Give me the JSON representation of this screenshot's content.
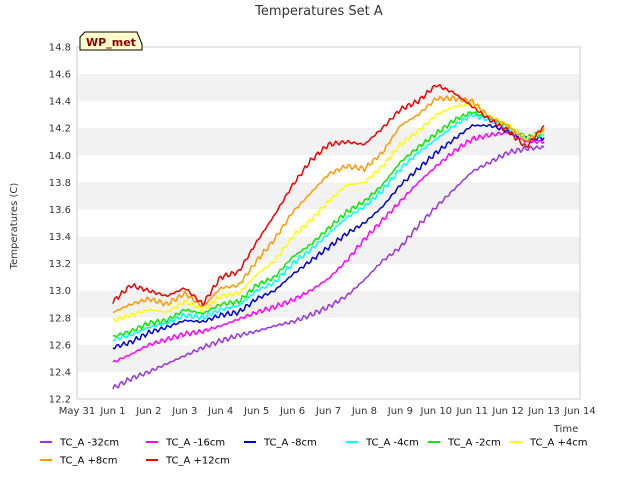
{
  "chart_data": {
    "type": "line",
    "title": "Temperatures Set A",
    "xlabel": "Time",
    "ylabel": "Temperatures (C)",
    "badge": "WP_met",
    "xlim": [
      0,
      14
    ],
    "ylim": [
      12.2,
      14.8
    ],
    "x_ticks": [
      0,
      1,
      2,
      3,
      4,
      5,
      6,
      7,
      8,
      9,
      10,
      11,
      12,
      13,
      14
    ],
    "x_tick_labels": [
      "May 31",
      "Jun 1",
      "Jun 2",
      "Jun 3",
      "Jun 4",
      "Jun 5",
      "Jun 6",
      "Jun 7",
      "Jun 8",
      "Jun 9",
      "Jun 10",
      "Jun 11",
      "Jun 12",
      "Jun 13",
      "Jun 14"
    ],
    "y_ticks": [
      12.2,
      12.4,
      12.6,
      12.8,
      13.0,
      13.2,
      13.4,
      13.6,
      13.8,
      14.0,
      14.2,
      14.4,
      14.6,
      14.8
    ],
    "y_tick_labels": [
      "12.2",
      "12.4",
      "12.6",
      "12.8",
      "13.0",
      "13.2",
      "13.4",
      "13.6",
      "13.8",
      "14.0",
      "14.2",
      "14.4",
      "14.6",
      "14.8"
    ],
    "grid": "alternating horizontal bands",
    "legend_placement": "bottom",
    "x": [
      1.0,
      1.5,
      2.0,
      2.5,
      3.0,
      3.5,
      4.0,
      4.5,
      5.0,
      5.5,
      6.0,
      6.5,
      7.0,
      7.5,
      8.0,
      8.5,
      9.0,
      9.5,
      10.0,
      10.5,
      11.0,
      11.5,
      12.0,
      12.5,
      13.0
    ],
    "series": [
      {
        "name": "TC_A -32cm",
        "color": "#9933dd",
        "values": [
          12.28,
          12.35,
          12.4,
          12.46,
          12.52,
          12.58,
          12.63,
          12.67,
          12.7,
          12.74,
          12.77,
          12.82,
          12.88,
          12.96,
          13.08,
          13.22,
          13.32,
          13.48,
          13.62,
          13.75,
          13.88,
          13.95,
          14.02,
          14.05,
          14.06
        ]
      },
      {
        "name": "TC_A -16cm",
        "color": "#ff00ff",
        "values": [
          12.47,
          12.53,
          12.6,
          12.64,
          12.68,
          12.7,
          12.74,
          12.79,
          12.84,
          12.88,
          12.93,
          13.0,
          13.09,
          13.22,
          13.38,
          13.52,
          13.66,
          13.8,
          13.92,
          14.03,
          14.12,
          14.15,
          14.17,
          14.1,
          14.1
        ]
      },
      {
        "name": "TC_A -8cm",
        "color": "#0000cc",
        "values": [
          12.58,
          12.62,
          12.69,
          12.73,
          12.78,
          12.77,
          12.82,
          12.84,
          12.94,
          13.0,
          13.12,
          13.22,
          13.32,
          13.42,
          13.5,
          13.62,
          13.78,
          13.9,
          14.02,
          14.12,
          14.22,
          14.22,
          14.18,
          14.12,
          14.13
        ]
      },
      {
        "name": "TC_A -4cm",
        "color": "#00ffff",
        "values": [
          12.64,
          12.67,
          12.73,
          12.76,
          12.82,
          12.8,
          12.86,
          12.89,
          13.0,
          13.06,
          13.2,
          13.3,
          13.42,
          13.54,
          13.62,
          13.74,
          13.9,
          14.02,
          14.12,
          14.22,
          14.3,
          14.26,
          14.2,
          14.12,
          14.15
        ]
      },
      {
        "name": "TC_A -2cm",
        "color": "#00ee00",
        "values": [
          12.66,
          12.7,
          12.76,
          12.78,
          12.86,
          12.83,
          12.9,
          12.92,
          13.04,
          13.1,
          13.25,
          13.34,
          13.46,
          13.58,
          13.66,
          13.78,
          13.95,
          14.06,
          14.16,
          14.26,
          14.32,
          14.27,
          14.21,
          14.13,
          14.17
        ]
      },
      {
        "name": "TC_A +4cm",
        "color": "#ffff00",
        "values": [
          12.78,
          12.82,
          12.86,
          12.84,
          12.92,
          12.86,
          12.96,
          12.98,
          13.12,
          13.22,
          13.4,
          13.52,
          13.66,
          13.78,
          13.8,
          13.92,
          14.08,
          14.18,
          14.3,
          14.36,
          14.38,
          14.28,
          14.22,
          14.12,
          14.18
        ]
      },
      {
        "name": "TC_A +8cm",
        "color": "#ff9900",
        "values": [
          12.84,
          12.9,
          12.94,
          12.9,
          12.98,
          12.88,
          13.02,
          13.04,
          13.22,
          13.38,
          13.58,
          13.72,
          13.86,
          13.92,
          13.9,
          14.02,
          14.22,
          14.3,
          14.42,
          14.42,
          14.4,
          14.28,
          14.22,
          14.1,
          14.2
        ]
      },
      {
        "name": "TC_A +12cm",
        "color": "#ee0000",
        "values": [
          12.92,
          13.04,
          13.0,
          12.96,
          13.02,
          12.9,
          13.1,
          13.14,
          13.36,
          13.56,
          13.78,
          13.96,
          14.08,
          14.1,
          14.08,
          14.2,
          14.34,
          14.4,
          14.52,
          14.46,
          14.36,
          14.26,
          14.18,
          14.06,
          14.22
        ]
      }
    ]
  }
}
